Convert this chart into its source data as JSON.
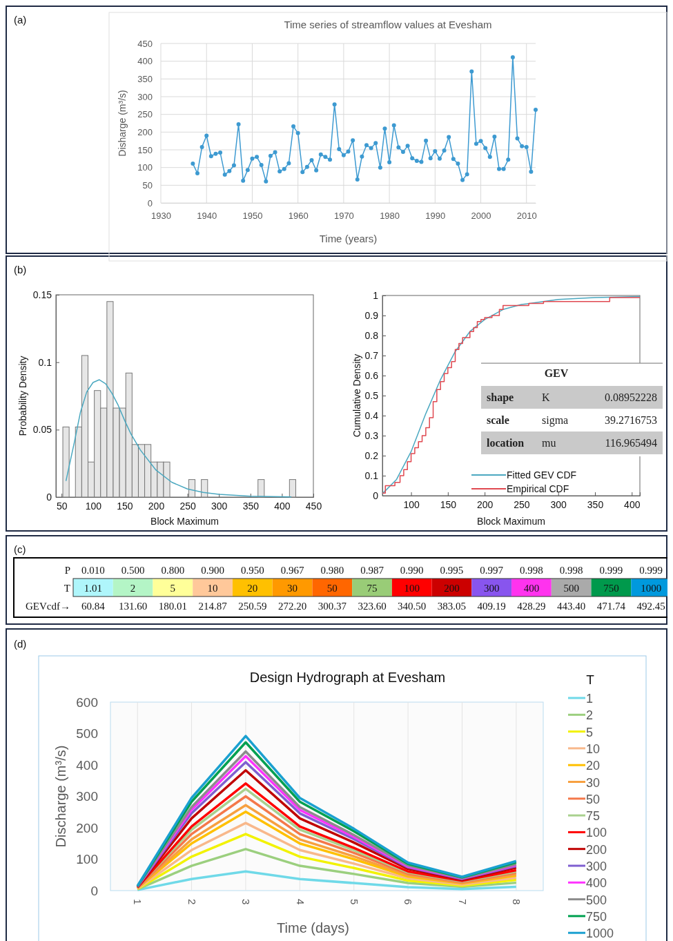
{
  "chart_data": [
    {
      "type": "line",
      "title": "Time series of streamflow values at Evesham",
      "xlabel": "Time (years)",
      "ylabel": "Disharge (m³/s)",
      "annotations": [
        "(a)"
      ],
      "color": "#3d9ad1",
      "marker": "circle",
      "grid": true,
      "xlim": [
        1930,
        2012
      ],
      "xticks": [
        1930,
        1940,
        1950,
        1960,
        1970,
        1980,
        1990,
        2000,
        2010
      ],
      "ylim": [
        0,
        450
      ],
      "yticks": [
        0,
        50,
        100,
        150,
        200,
        250,
        300,
        350,
        400,
        450
      ],
      "x": [
        1937,
        1938,
        1939,
        1940,
        1941,
        1942,
        1943,
        1944,
        1945,
        1946,
        1947,
        1948,
        1949,
        1950,
        1951,
        1952,
        1953,
        1954,
        1955,
        1956,
        1957,
        1958,
        1959,
        1960,
        1961,
        1962,
        1963,
        1964,
        1965,
        1966,
        1967,
        1968,
        1969,
        1970,
        1971,
        1972,
        1973,
        1974,
        1975,
        1976,
        1977,
        1978,
        1979,
        1980,
        1981,
        1982,
        1983,
        1984,
        1985,
        1986,
        1987,
        1988,
        1989,
        1990,
        1991,
        1992,
        1993,
        1994,
        1995,
        1996,
        1997,
        1998,
        1999,
        2000,
        2001,
        2002,
        2003,
        2004,
        2005,
        2006,
        2007,
        2008,
        2009,
        2010,
        2011,
        2012
      ],
      "values": [
        111,
        84,
        158,
        190,
        132,
        139,
        142,
        80,
        90,
        106,
        222,
        63,
        93,
        125,
        130,
        107,
        61,
        133,
        143,
        89,
        96,
        112,
        216,
        197,
        87,
        102,
        121,
        92,
        137,
        130,
        122,
        278,
        152,
        135,
        145,
        177,
        66,
        131,
        163,
        155,
        169,
        100,
        210,
        115,
        219,
        157,
        144,
        161,
        126,
        119,
        116,
        176,
        126,
        146,
        125,
        148,
        186,
        124,
        111,
        65,
        81,
        371,
        167,
        175,
        155,
        130,
        187,
        96,
        96,
        122,
        411,
        182,
        160,
        158,
        88,
        263
      ]
    },
    {
      "type": "histogram",
      "xlabel": "Block Maximum",
      "ylabel": "Probability Density",
      "annotations": [
        "(b)"
      ],
      "color": "#e6e6e6",
      "xlim": [
        41,
        450
      ],
      "xticks": [
        50,
        100,
        150,
        200,
        250,
        300,
        350,
        400,
        450
      ],
      "ylim": [
        0,
        0.15
      ],
      "yticks": [
        0,
        0.05,
        0.1,
        0.15
      ],
      "bins": [
        52,
        62,
        72,
        82,
        92,
        102,
        112,
        122,
        132,
        142,
        152,
        162,
        172,
        182,
        192,
        202,
        212,
        222,
        232,
        242,
        252,
        262,
        272,
        282,
        292,
        302,
        312,
        322,
        332,
        342,
        352,
        362,
        372,
        382,
        392,
        402,
        412,
        422
      ],
      "values": [
        0.052,
        0,
        0.052,
        0.105,
        0.026,
        0.079,
        0.066,
        0.145,
        0.066,
        0.066,
        0.092,
        0.039,
        0.039,
        0.039,
        0.026,
        0.026,
        0.026,
        0,
        0,
        0,
        0.013,
        0,
        0.013,
        0,
        0,
        0,
        0,
        0,
        0,
        0,
        0,
        0.013,
        0,
        0,
        0,
        0,
        0.013
      ],
      "series": [
        {
          "type": "line",
          "color": "#4aa8c0",
          "x": [
            57,
            70,
            80,
            90,
            100,
            110,
            120,
            130,
            140,
            150,
            160,
            175,
            200,
            225,
            250,
            275,
            300,
            350,
            415
          ],
          "values": [
            0.012,
            0.04,
            0.063,
            0.078,
            0.085,
            0.087,
            0.084,
            0.077,
            0.068,
            0.057,
            0.047,
            0.035,
            0.02,
            0.011,
            0.006,
            0.0035,
            0.002,
            0.0006,
            0.0001
          ]
        }
      ]
    },
    {
      "type": "line",
      "xlabel": "Block Maximum",
      "ylabel": "Cumulative Density",
      "legend": "bottom",
      "annotations": [
        "GEV",
        "shape",
        "K",
        "0.08952228",
        "scale",
        "sigma",
        "39.2716753",
        "location",
        "mu",
        "116.965494"
      ],
      "xlim": [
        61,
        411
      ],
      "xticks": [
        100,
        150,
        200,
        250,
        300,
        350,
        400
      ],
      "ylim": [
        0,
        1
      ],
      "yticks": [
        0,
        0.1,
        0.2,
        0.3,
        0.4,
        0.5,
        0.6,
        0.7,
        0.8,
        0.9,
        1
      ],
      "series": [
        {
          "name": "Fitted GEV CDF",
          "color": "#4aa8c0",
          "x": [
            61,
            80,
            100,
            120,
            140,
            160,
            180,
            200,
            225,
            250,
            300,
            350,
            411
          ],
          "values": [
            0.01,
            0.08,
            0.22,
            0.41,
            0.58,
            0.72,
            0.82,
            0.88,
            0.93,
            0.955,
            0.98,
            0.99,
            0.995
          ]
        },
        {
          "name": "Empirical CDF",
          "type": "step",
          "color": "#e04850",
          "x": [
            61,
            65,
            78,
            85,
            90,
            95,
            100,
            105,
            110,
            115,
            120,
            125,
            130,
            135,
            140,
            145,
            150,
            155,
            160,
            165,
            170,
            175,
            180,
            185,
            190,
            195,
            200,
            210,
            220,
            225,
            240,
            250,
            260,
            280,
            300,
            370,
            411
          ],
          "values": [
            0.013,
            0.05,
            0.066,
            0.1,
            0.13,
            0.17,
            0.21,
            0.24,
            0.27,
            0.3,
            0.34,
            0.39,
            0.47,
            0.53,
            0.57,
            0.61,
            0.64,
            0.67,
            0.73,
            0.76,
            0.79,
            0.79,
            0.82,
            0.84,
            0.87,
            0.88,
            0.89,
            0.9,
            0.93,
            0.95,
            0.95,
            0.95,
            0.96,
            0.97,
            0.97,
            0.99,
            0.99
          ]
        }
      ]
    },
    {
      "type": "other",
      "annotations": [
        "(c)"
      ],
      "y_categories": [
        "P",
        "T",
        "GEVcdf→"
      ],
      "cells": [
        [
          "0.010",
          "0.500",
          "0.800",
          "0.900",
          "0.950",
          "0.967",
          "0.980",
          "0.987",
          "0.990",
          "0.995",
          "0.997",
          "0.998",
          "0.998",
          "0.999",
          "0.999"
        ],
        [
          "1.01",
          "2",
          "5",
          "10",
          "20",
          "30",
          "50",
          "75",
          "100",
          "200",
          "300",
          "400",
          "500",
          "750",
          "1000"
        ],
        [
          "60.84",
          "131.60",
          "180.01",
          "214.87",
          "250.59",
          "272.20",
          "300.37",
          "323.60",
          "340.50",
          "383.05",
          "409.19",
          "428.29",
          "443.40",
          "471.74",
          "492.45"
        ]
      ],
      "colors": [
        "#aff6fb",
        "#b4f5c6",
        "#ffff99",
        "#ffc89a",
        "#ffc000",
        "#ff9900",
        "#ff6600",
        "#99cc77",
        "#ff0000",
        "#cc0000",
        "#8855ee",
        "#ff33ee",
        "#aaaaaa",
        "#00994c",
        "#0099dd"
      ]
    },
    {
      "type": "line",
      "title": "Design Hydrograph at Evesham",
      "xlabel": "Time (days)",
      "ylabel": "Discharge (m³/s)",
      "legend_title": "T",
      "legend": "right",
      "grid": "x",
      "annotations": [
        "(d)"
      ],
      "categories": [
        "1",
        "2",
        "3",
        "4",
        "5",
        "6",
        "7",
        "8"
      ],
      "ylim": [
        0,
        600
      ],
      "yticks": [
        0,
        100,
        200,
        300,
        400,
        500,
        600
      ],
      "series": [
        {
          "name": "1",
          "color": "#6fd9e8",
          "values": [
            2,
            37,
            61,
            37,
            24,
            11,
            5,
            12
          ]
        },
        {
          "name": "2",
          "color": "#9bcf7e",
          "values": [
            4,
            79,
            132,
            79,
            53,
            24,
            12,
            25
          ]
        },
        {
          "name": "5",
          "color": "#f2f200",
          "values": [
            5,
            108,
            180,
            108,
            72,
            32,
            16,
            34
          ]
        },
        {
          "name": "10",
          "color": "#f8b88b",
          "values": [
            6,
            129,
            215,
            129,
            86,
            39,
            19,
            41
          ]
        },
        {
          "name": "20",
          "color": "#ffc000",
          "values": [
            8,
            150,
            251,
            150,
            100,
            45,
            23,
            48
          ]
        },
        {
          "name": "30",
          "color": "#f7a040",
          "values": [
            8,
            163,
            272,
            163,
            109,
            49,
            24,
            52
          ]
        },
        {
          "name": "50",
          "color": "#f4784a",
          "values": [
            9,
            180,
            300,
            180,
            120,
            54,
            27,
            57
          ]
        },
        {
          "name": "75",
          "color": "#a9d18e",
          "values": [
            10,
            194,
            324,
            194,
            129,
            58,
            29,
            61
          ]
        },
        {
          "name": "100",
          "color": "#ff0000",
          "values": [
            10,
            204,
            341,
            204,
            136,
            61,
            31,
            65
          ]
        },
        {
          "name": "200",
          "color": "#c00000",
          "values": [
            11,
            230,
            383,
            230,
            153,
            69,
            34,
            73
          ]
        },
        {
          "name": "300",
          "color": "#7f5fd0",
          "values": [
            12,
            246,
            409,
            246,
            164,
            74,
            37,
            78
          ]
        },
        {
          "name": "400",
          "color": "#ff33ff",
          "values": [
            13,
            257,
            428,
            257,
            171,
            77,
            39,
            81
          ]
        },
        {
          "name": "500",
          "color": "#8c8c8c",
          "values": [
            13,
            266,
            443,
            266,
            177,
            80,
            40,
            84
          ]
        },
        {
          "name": "750",
          "color": "#00a050",
          "values": [
            14,
            283,
            472,
            283,
            189,
            85,
            42,
            90
          ]
        },
        {
          "name": "1000",
          "color": "#1aa0d0",
          "values": [
            15,
            295,
            492,
            295,
            197,
            89,
            44,
            94
          ]
        }
      ]
    }
  ]
}
